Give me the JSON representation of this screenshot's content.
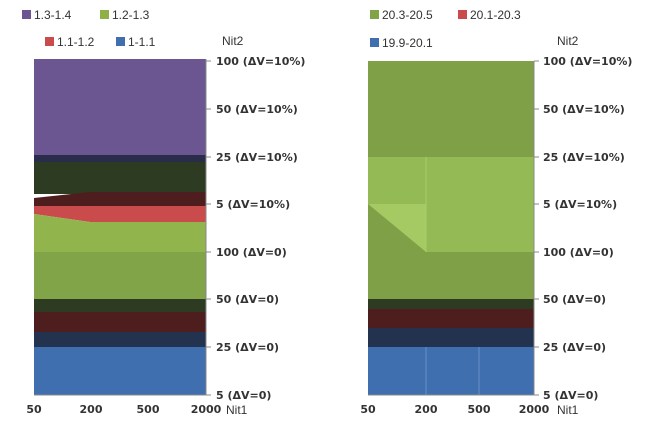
{
  "chart_data": [
    {
      "type": "area",
      "xlabel": "Nit1",
      "ylabel": "Nit2",
      "x_ticks": [
        "50",
        "200",
        "500",
        "2000"
      ],
      "y_ticks": [
        "5 (ΔV=0)",
        "25 (ΔV=0)",
        "50 (ΔV=0)",
        "100 (ΔV=0)",
        "5 (ΔV=10%)",
        "25 (ΔV=10%)",
        "50 (ΔV=10%)",
        "100 (ΔV=10%)"
      ],
      "legend": [
        {
          "name": "1.3-1.4",
          "color": "#6b5691"
        },
        {
          "name": "1.2-1.3",
          "color": "#8faf47"
        },
        {
          "name": "1.1-1.2",
          "color": "#c94b4b"
        },
        {
          "name": "1-1.1",
          "color": "#3f6fae"
        }
      ],
      "legend_position": "top",
      "region_colors": {
        "purple": "#6b5691",
        "navy_band": "#2a2d4a",
        "dark_green": "#2c3b22",
        "maroon": "#4e1d1d",
        "red": "#c94b4b",
        "light_green": "#91b54c",
        "olive": "#80a447",
        "navy": "#22324f",
        "blue": "#3f6fae"
      }
    },
    {
      "type": "area",
      "xlabel": "Nit1",
      "ylabel": "Nit2",
      "x_ticks": [
        "50",
        "200",
        "500",
        "2000"
      ],
      "y_ticks": [
        "5 (ΔV=0)",
        "25 (ΔV=0)",
        "50 (ΔV=0)",
        "100 (ΔV=0)",
        "5 (ΔV=10%)",
        "25 (ΔV=10%)",
        "50 (ΔV=10%)",
        "100 (ΔV=10%)"
      ],
      "legend": [
        {
          "name": "20.3-20.5",
          "color": "#80a447"
        },
        {
          "name": "20.1-20.3",
          "color": "#c94b4b"
        },
        {
          "name": "19.9-20.1",
          "color": "#3f6fae"
        }
      ],
      "legend_position": "top",
      "region_colors": {
        "olive": "#7fa046",
        "light_green": "#94ba56",
        "pale_green": "#a5c963",
        "dark_green": "#2c3b22",
        "maroon": "#4e1d1d",
        "navy": "#22324f",
        "blue": "#3f6fae"
      }
    }
  ]
}
